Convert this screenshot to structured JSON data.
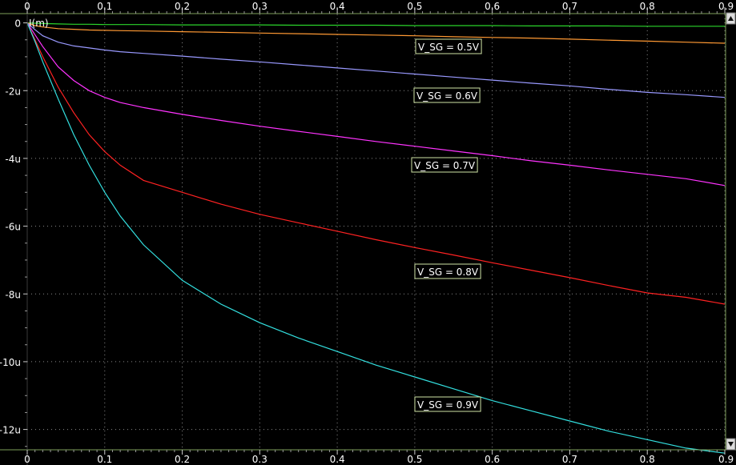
{
  "chart_data": {
    "type": "line",
    "ylabel": "I(m)",
    "xlim": [
      0,
      0.9
    ],
    "ylim": [
      -12.6,
      0.25
    ],
    "x_ticks": [
      "0",
      "0.1",
      "0.2",
      "0.3",
      "0.4",
      "0.5",
      "0.6",
      "0.7",
      "0.8",
      "0.9"
    ],
    "y_ticks": [
      {
        "value": 0,
        "label": "0"
      },
      {
        "value": -2,
        "label": "-2u"
      },
      {
        "value": -4,
        "label": "-4u"
      },
      {
        "value": -6,
        "label": "-6u"
      },
      {
        "value": -8,
        "label": "-8u"
      },
      {
        "value": -10,
        "label": "-10u"
      },
      {
        "value": -12,
        "label": "-12u"
      }
    ],
    "grid": true,
    "x": [
      0,
      0.01,
      0.02,
      0.04,
      0.06,
      0.08,
      0.1,
      0.12,
      0.15,
      0.2,
      0.25,
      0.3,
      0.35,
      0.4,
      0.45,
      0.5,
      0.55,
      0.6,
      0.65,
      0.7,
      0.75,
      0.8,
      0.85,
      0.9
    ],
    "series": [
      {
        "color": "#2bd42b",
        "values": [
          0,
          -0.01,
          -0.02,
          -0.03,
          -0.04,
          -0.04,
          -0.05,
          -0.05,
          -0.05,
          -0.06,
          -0.06,
          -0.06,
          -0.07,
          -0.07,
          -0.07,
          -0.08,
          -0.08,
          -0.08,
          -0.09,
          -0.09,
          -0.09,
          -0.1,
          -0.1,
          -0.1
        ]
      },
      {
        "color": "#ff9933",
        "values": [
          0,
          -0.08,
          -0.12,
          -0.17,
          -0.19,
          -0.21,
          -0.22,
          -0.23,
          -0.24,
          -0.26,
          -0.28,
          -0.3,
          -0.32,
          -0.34,
          -0.36,
          -0.38,
          -0.41,
          -0.43,
          -0.45,
          -0.48,
          -0.51,
          -0.54,
          -0.57,
          -0.6
        ]
      },
      {
        "color": "#9999ff",
        "values": [
          0,
          -0.2,
          -0.38,
          -0.57,
          -0.68,
          -0.74,
          -0.8,
          -0.85,
          -0.9,
          -0.98,
          -1.07,
          -1.15,
          -1.24,
          -1.33,
          -1.42,
          -1.51,
          -1.6,
          -1.69,
          -1.78,
          -1.86,
          -1.96,
          -2.05,
          -2.12,
          -2.2
        ]
      },
      {
        "color": "#ff33ff",
        "values": [
          0,
          -0.35,
          -0.7,
          -1.3,
          -1.7,
          -2.0,
          -2.2,
          -2.35,
          -2.5,
          -2.7,
          -2.88,
          -3.05,
          -3.2,
          -3.35,
          -3.5,
          -3.64,
          -3.78,
          -3.92,
          -4.07,
          -4.2,
          -4.34,
          -4.47,
          -4.6,
          -4.8
        ]
      },
      {
        "color": "#ff2222",
        "values": [
          0,
          -0.5,
          -1.0,
          -1.9,
          -2.65,
          -3.3,
          -3.8,
          -4.2,
          -4.65,
          -5.0,
          -5.35,
          -5.65,
          -5.9,
          -6.15,
          -6.4,
          -6.63,
          -6.85,
          -7.08,
          -7.3,
          -7.52,
          -7.75,
          -7.97,
          -8.1,
          -8.3
        ]
      },
      {
        "color": "#33e0e0",
        "values": [
          0,
          -0.55,
          -1.15,
          -2.25,
          -3.3,
          -4.2,
          -5.0,
          -5.7,
          -6.55,
          -7.6,
          -8.3,
          -8.85,
          -9.3,
          -9.7,
          -10.1,
          -10.45,
          -10.8,
          -11.15,
          -11.45,
          -11.75,
          -12.05,
          -12.3,
          -12.55,
          -12.7
        ]
      }
    ],
    "annotations": [
      {
        "text": "V_SG = 0.5V"
      },
      {
        "text": "V_SG = 0.6V"
      },
      {
        "text": "V_SG = 0.7V"
      },
      {
        "text": "V_SG = 0.8V"
      },
      {
        "text": "V_SG = 0.9V"
      }
    ]
  }
}
